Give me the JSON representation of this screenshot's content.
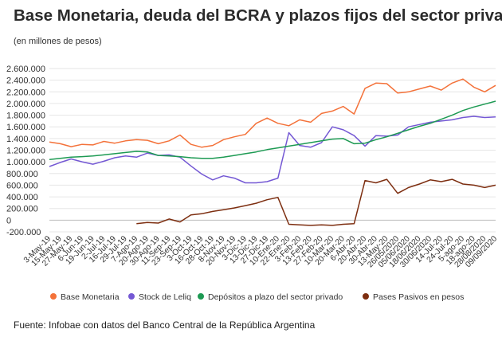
{
  "header": {
    "title": "Base Monetaria, deuda del BCRA y plazos fijos del sector privado",
    "subtitle": "(en millones de pesos)"
  },
  "footer": {
    "source": "Fuente: Infobae con datos del Banco Central de la República Argentina"
  },
  "chart_data": {
    "type": "line",
    "y_ticks": [
      "2.600.000",
      "2.400.000",
      "2.200.000",
      "2.000.000",
      "1.800.000",
      "1.600.000",
      "1.400.000",
      "1.200.000",
      "1.000.000",
      "800.000",
      "600.000",
      "400.000",
      "200.000",
      "0",
      "-200.000"
    ],
    "y_tick_values": [
      2600000,
      2400000,
      2200000,
      2000000,
      1800000,
      1600000,
      1400000,
      1200000,
      1000000,
      800000,
      600000,
      400000,
      200000,
      0,
      -200000
    ],
    "ylim": [
      -200000,
      2600000
    ],
    "grid": true,
    "legend_position": "bottom",
    "x_categories": [
      "3-May-19",
      "15-May-19",
      "27-May-19",
      "6-Jun-19",
      "19-Jun-19",
      "2-Jul-19",
      "16-Jul-19",
      "29-Jul-19",
      "7-Ago-19",
      "20-Ago-19",
      "30-Ago-19",
      "11-Sep-19",
      "23-Sep-19",
      "3-Oct-19",
      "16-Oct-19",
      "28-Oct-19",
      "8-Nov-19",
      "20-Nov-19",
      "3-Dic-19",
      "13-Dic-19",
      "27-Dic-19",
      "10-Ene-20",
      "22-Ene-20",
      "3-Feb-20",
      "13-Feb-20",
      "27-Feb-20",
      "10-Mar-20",
      "20-Mar-20",
      "6-Abr-20",
      "20-Abr-20",
      "30-Abr-20",
      "13-May-20",
      "26/05/2020",
      "05/06/2020",
      "18/06/2020",
      "30/06/2020",
      "14-Jul-20",
      "24-Jul-20",
      "5-ago-20",
      "18-ago-20",
      "28/08/2020",
      "09/09/2020"
    ],
    "series": [
      {
        "name": "Base Monetaria",
        "color": "#f4723a",
        "values": [
          1340000,
          1310000,
          1260000,
          1300000,
          1290000,
          1350000,
          1320000,
          1360000,
          1380000,
          1370000,
          1310000,
          1360000,
          1460000,
          1300000,
          1250000,
          1280000,
          1380000,
          1430000,
          1470000,
          1660000,
          1750000,
          1660000,
          1620000,
          1720000,
          1680000,
          1830000,
          1870000,
          1950000,
          1820000,
          2260000,
          2350000,
          2340000,
          2180000,
          2200000,
          2250000,
          2300000,
          2230000,
          2350000,
          2420000,
          2280000,
          2200000,
          2310000
        ]
      },
      {
        "name": "Stock de Leliq",
        "color": "#7458d4",
        "values": [
          920000,
          990000,
          1050000,
          1000000,
          960000,
          1010000,
          1070000,
          1100000,
          1080000,
          1150000,
          1110000,
          1120000,
          1080000,
          930000,
          790000,
          690000,
          760000,
          720000,
          640000,
          640000,
          660000,
          720000,
          1500000,
          1280000,
          1250000,
          1330000,
          1600000,
          1550000,
          1450000,
          1270000,
          1450000,
          1440000,
          1460000,
          1600000,
          1640000,
          1680000,
          1700000,
          1720000,
          1760000,
          1780000,
          1760000,
          1770000
        ]
      },
      {
        "name": "Depósitos a plazo del sector privado",
        "color": "#1d9a53",
        "values": [
          1040000,
          1060000,
          1080000,
          1090000,
          1100000,
          1120000,
          1140000,
          1160000,
          1180000,
          1170000,
          1110000,
          1100000,
          1090000,
          1070000,
          1060000,
          1060000,
          1080000,
          1110000,
          1140000,
          1170000,
          1210000,
          1240000,
          1270000,
          1300000,
          1330000,
          1360000,
          1390000,
          1400000,
          1310000,
          1320000,
          1380000,
          1430000,
          1490000,
          1550000,
          1610000,
          1660000,
          1730000,
          1800000,
          1880000,
          1940000,
          1990000,
          2040000
        ]
      },
      {
        "name": "Pases Pasivos en pesos",
        "color": "#7d2e10",
        "values": [
          null,
          null,
          null,
          null,
          null,
          null,
          null,
          null,
          -60000,
          -40000,
          -50000,
          20000,
          -30000,
          90000,
          110000,
          150000,
          180000,
          210000,
          250000,
          290000,
          350000,
          390000,
          -70000,
          -80000,
          -90000,
          -80000,
          -90000,
          -70000,
          -60000,
          680000,
          640000,
          700000,
          460000,
          560000,
          620000,
          690000,
          660000,
          700000,
          620000,
          600000,
          560000,
          600000
        ]
      }
    ]
  }
}
